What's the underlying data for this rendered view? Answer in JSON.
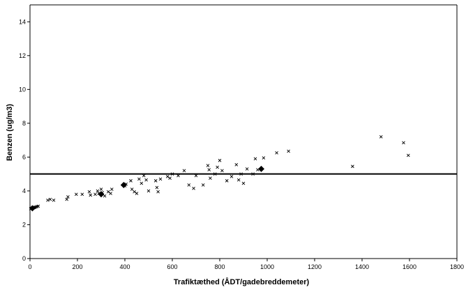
{
  "chart_data": {
    "type": "scatter",
    "xlabel": "Trafiktæthed (ÅDT/gadebreddemeter)",
    "ylabel": "Benzen (ug/m3)",
    "xlim": [
      0,
      1800
    ],
    "ylim": [
      0,
      15
    ],
    "xticks": [
      0,
      200,
      400,
      600,
      800,
      1000,
      1200,
      1400,
      1600,
      1800
    ],
    "yticks": [
      0,
      2,
      4,
      6,
      8,
      10,
      12,
      14
    ],
    "grid": false,
    "legend": "none",
    "reference_line_y": 5,
    "colors": {
      "line": "#000000",
      "marker": "#000000",
      "background": "#ffffff"
    },
    "series": [
      {
        "marker": "x",
        "points": [
          [
            3,
            2.95
          ],
          [
            6,
            2.97
          ],
          [
            9,
            2.98
          ],
          [
            12,
            3.0
          ],
          [
            15,
            3.0
          ],
          [
            18,
            3.02
          ],
          [
            21,
            3.03
          ],
          [
            25,
            3.05
          ],
          [
            30,
            3.08
          ],
          [
            35,
            3.1
          ],
          [
            75,
            3.45
          ],
          [
            85,
            3.5
          ],
          [
            100,
            3.45
          ],
          [
            155,
            3.5
          ],
          [
            160,
            3.65
          ],
          [
            195,
            3.8
          ],
          [
            220,
            3.8
          ],
          [
            250,
            3.95
          ],
          [
            255,
            3.75
          ],
          [
            275,
            3.8
          ],
          [
            285,
            4.0
          ],
          [
            290,
            3.85
          ],
          [
            300,
            4.1
          ],
          [
            305,
            3.9
          ],
          [
            315,
            3.7
          ],
          [
            330,
            3.95
          ],
          [
            340,
            3.85
          ],
          [
            345,
            4.1
          ],
          [
            400,
            4.3
          ],
          [
            405,
            4.4
          ],
          [
            425,
            4.6
          ],
          [
            430,
            4.1
          ],
          [
            440,
            3.95
          ],
          [
            450,
            3.85
          ],
          [
            460,
            4.7
          ],
          [
            470,
            4.45
          ],
          [
            480,
            4.9
          ],
          [
            490,
            4.65
          ],
          [
            500,
            4.0
          ],
          [
            530,
            4.6
          ],
          [
            535,
            4.2
          ],
          [
            540,
            3.95
          ],
          [
            550,
            4.7
          ],
          [
            580,
            4.85
          ],
          [
            590,
            4.75
          ],
          [
            600,
            5.0
          ],
          [
            625,
            4.9
          ],
          [
            650,
            5.2
          ],
          [
            670,
            4.35
          ],
          [
            690,
            4.15
          ],
          [
            700,
            4.9
          ],
          [
            730,
            4.35
          ],
          [
            750,
            5.5
          ],
          [
            755,
            5.25
          ],
          [
            760,
            4.75
          ],
          [
            780,
            5.0
          ],
          [
            790,
            5.4
          ],
          [
            800,
            5.8
          ],
          [
            810,
            5.2
          ],
          [
            830,
            4.6
          ],
          [
            850,
            4.85
          ],
          [
            870,
            5.55
          ],
          [
            880,
            4.65
          ],
          [
            890,
            5.0
          ],
          [
            900,
            4.45
          ],
          [
            915,
            5.3
          ],
          [
            940,
            5.0
          ],
          [
            950,
            5.9
          ],
          [
            960,
            5.25
          ],
          [
            985,
            5.95
          ],
          [
            1040,
            6.25
          ],
          [
            1090,
            6.35
          ],
          [
            1360,
            5.45
          ],
          [
            1480,
            7.2
          ],
          [
            1575,
            6.85
          ],
          [
            1595,
            6.1
          ]
        ]
      },
      {
        "marker": "diamond",
        "points": [
          [
            975,
            5.3
          ],
          [
            300,
            3.8
          ],
          [
            395,
            4.35
          ],
          [
            10,
            2.97
          ]
        ]
      }
    ]
  }
}
